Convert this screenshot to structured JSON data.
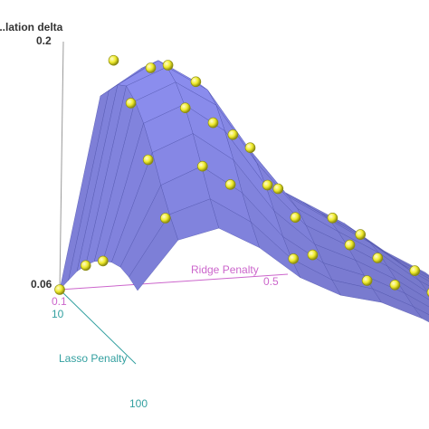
{
  "chart_data": {
    "type": "surface3d",
    "zlabel": "...lation delta",
    "xlabel": "Ridge Penalty",
    "ylabel": "Lasso Penalty",
    "z_ticks": [
      "0.2",
      "0.06"
    ],
    "ridge_ticks": [
      "0.1",
      "0.5"
    ],
    "lasso_ticks": [
      "10",
      "100"
    ],
    "zlim": [
      0.06,
      0.2
    ],
    "ridge_range": [
      0.1,
      0.5
    ],
    "lasso_range": [
      10,
      100
    ],
    "grid_ridge": [
      0.1,
      0.1444,
      0.1889,
      0.2333,
      0.2778,
      0.3222,
      0.3667,
      0.4111,
      0.4556,
      0.5
    ],
    "grid_lasso": [
      10,
      20,
      30,
      40,
      50,
      60,
      70,
      80,
      90,
      100
    ],
    "surface_z": [
      [
        0.06,
        0.17,
        0.185,
        0.175,
        0.14,
        0.118,
        0.105,
        0.092,
        0.075,
        0.062
      ],
      [
        0.07,
        0.178,
        0.192,
        0.18,
        0.145,
        0.12,
        0.106,
        0.093,
        0.076,
        0.063
      ],
      [
        0.08,
        0.186,
        0.199,
        0.185,
        0.15,
        0.122,
        0.108,
        0.094,
        0.077,
        0.064
      ],
      [
        0.088,
        0.19,
        0.2,
        0.186,
        0.152,
        0.123,
        0.109,
        0.095,
        0.078,
        0.064
      ],
      [
        0.095,
        0.186,
        0.196,
        0.182,
        0.148,
        0.121,
        0.107,
        0.094,
        0.077,
        0.064
      ],
      [
        0.1,
        0.178,
        0.188,
        0.172,
        0.14,
        0.116,
        0.104,
        0.091,
        0.075,
        0.063
      ],
      [
        0.104,
        0.166,
        0.176,
        0.16,
        0.13,
        0.11,
        0.1,
        0.088,
        0.073,
        0.062
      ],
      [
        0.106,
        0.152,
        0.162,
        0.146,
        0.12,
        0.104,
        0.096,
        0.085,
        0.071,
        0.061
      ],
      [
        0.105,
        0.14,
        0.148,
        0.134,
        0.112,
        0.099,
        0.093,
        0.082,
        0.069,
        0.06
      ],
      [
        0.102,
        0.13,
        0.136,
        0.124,
        0.106,
        0.095,
        0.09,
        0.08,
        0.067,
        0.06
      ]
    ],
    "points": [
      {
        "ridge": 0.1,
        "lasso": 10,
        "z": 0.06
      },
      {
        "ridge": 0.1,
        "lasso": 40,
        "z": 0.088
      },
      {
        "ridge": 0.1,
        "lasso": 60,
        "z": 0.1
      },
      {
        "ridge": 0.14,
        "lasso": 30,
        "z": 0.2
      },
      {
        "ridge": 0.14,
        "lasso": 50,
        "z": 0.185
      },
      {
        "ridge": 0.14,
        "lasso": 70,
        "z": 0.162
      },
      {
        "ridge": 0.14,
        "lasso": 90,
        "z": 0.138
      },
      {
        "ridge": 0.19,
        "lasso": 20,
        "z": 0.19
      },
      {
        "ridge": 0.19,
        "lasso": 40,
        "z": 0.201
      },
      {
        "ridge": 0.19,
        "lasso": 60,
        "z": 0.186
      },
      {
        "ridge": 0.19,
        "lasso": 80,
        "z": 0.162
      },
      {
        "ridge": 0.23,
        "lasso": 30,
        "z": 0.186
      },
      {
        "ridge": 0.23,
        "lasso": 50,
        "z": 0.172
      },
      {
        "ridge": 0.23,
        "lasso": 70,
        "z": 0.146
      },
      {
        "ridge": 0.28,
        "lasso": 20,
        "z": 0.15
      },
      {
        "ridge": 0.28,
        "lasso": 40,
        "z": 0.152
      },
      {
        "ridge": 0.28,
        "lasso": 60,
        "z": 0.14
      },
      {
        "ridge": 0.28,
        "lasso": 90,
        "z": 0.112
      },
      {
        "ridge": 0.32,
        "lasso": 30,
        "z": 0.123
      },
      {
        "ridge": 0.32,
        "lasso": 50,
        "z": 0.116
      },
      {
        "ridge": 0.32,
        "lasso": 70,
        "z": 0.104
      },
      {
        "ridge": 0.37,
        "lasso": 40,
        "z": 0.11
      },
      {
        "ridge": 0.37,
        "lasso": 60,
        "z": 0.104
      },
      {
        "ridge": 0.37,
        "lasso": 80,
        "z": 0.093
      },
      {
        "ridge": 0.41,
        "lasso": 30,
        "z": 0.095
      },
      {
        "ridge": 0.41,
        "lasso": 50,
        "z": 0.091
      },
      {
        "ridge": 0.41,
        "lasso": 70,
        "z": 0.085
      },
      {
        "ridge": 0.46,
        "lasso": 40,
        "z": 0.078
      },
      {
        "ridge": 0.46,
        "lasso": 60,
        "z": 0.075
      },
      {
        "ridge": 0.46,
        "lasso": 90,
        "z": 0.069
      },
      {
        "ridge": 0.5,
        "lasso": 20,
        "z": 0.063
      },
      {
        "ridge": 0.5,
        "lasso": 50,
        "z": 0.063
      },
      {
        "ridge": 0.5,
        "lasso": 80,
        "z": 0.061
      }
    ],
    "colors": {
      "surface": "#8c8ef0",
      "mesh": "#4a4fa8",
      "point": "#f0ec2c",
      "point_edge": "#8a8a10",
      "z_axis": "#9a9a9a",
      "ridge_axis": "#cc66cc",
      "lasso_axis": "#33a0a0",
      "z_tick": "#333333"
    },
    "grid": true,
    "legend": "none"
  }
}
